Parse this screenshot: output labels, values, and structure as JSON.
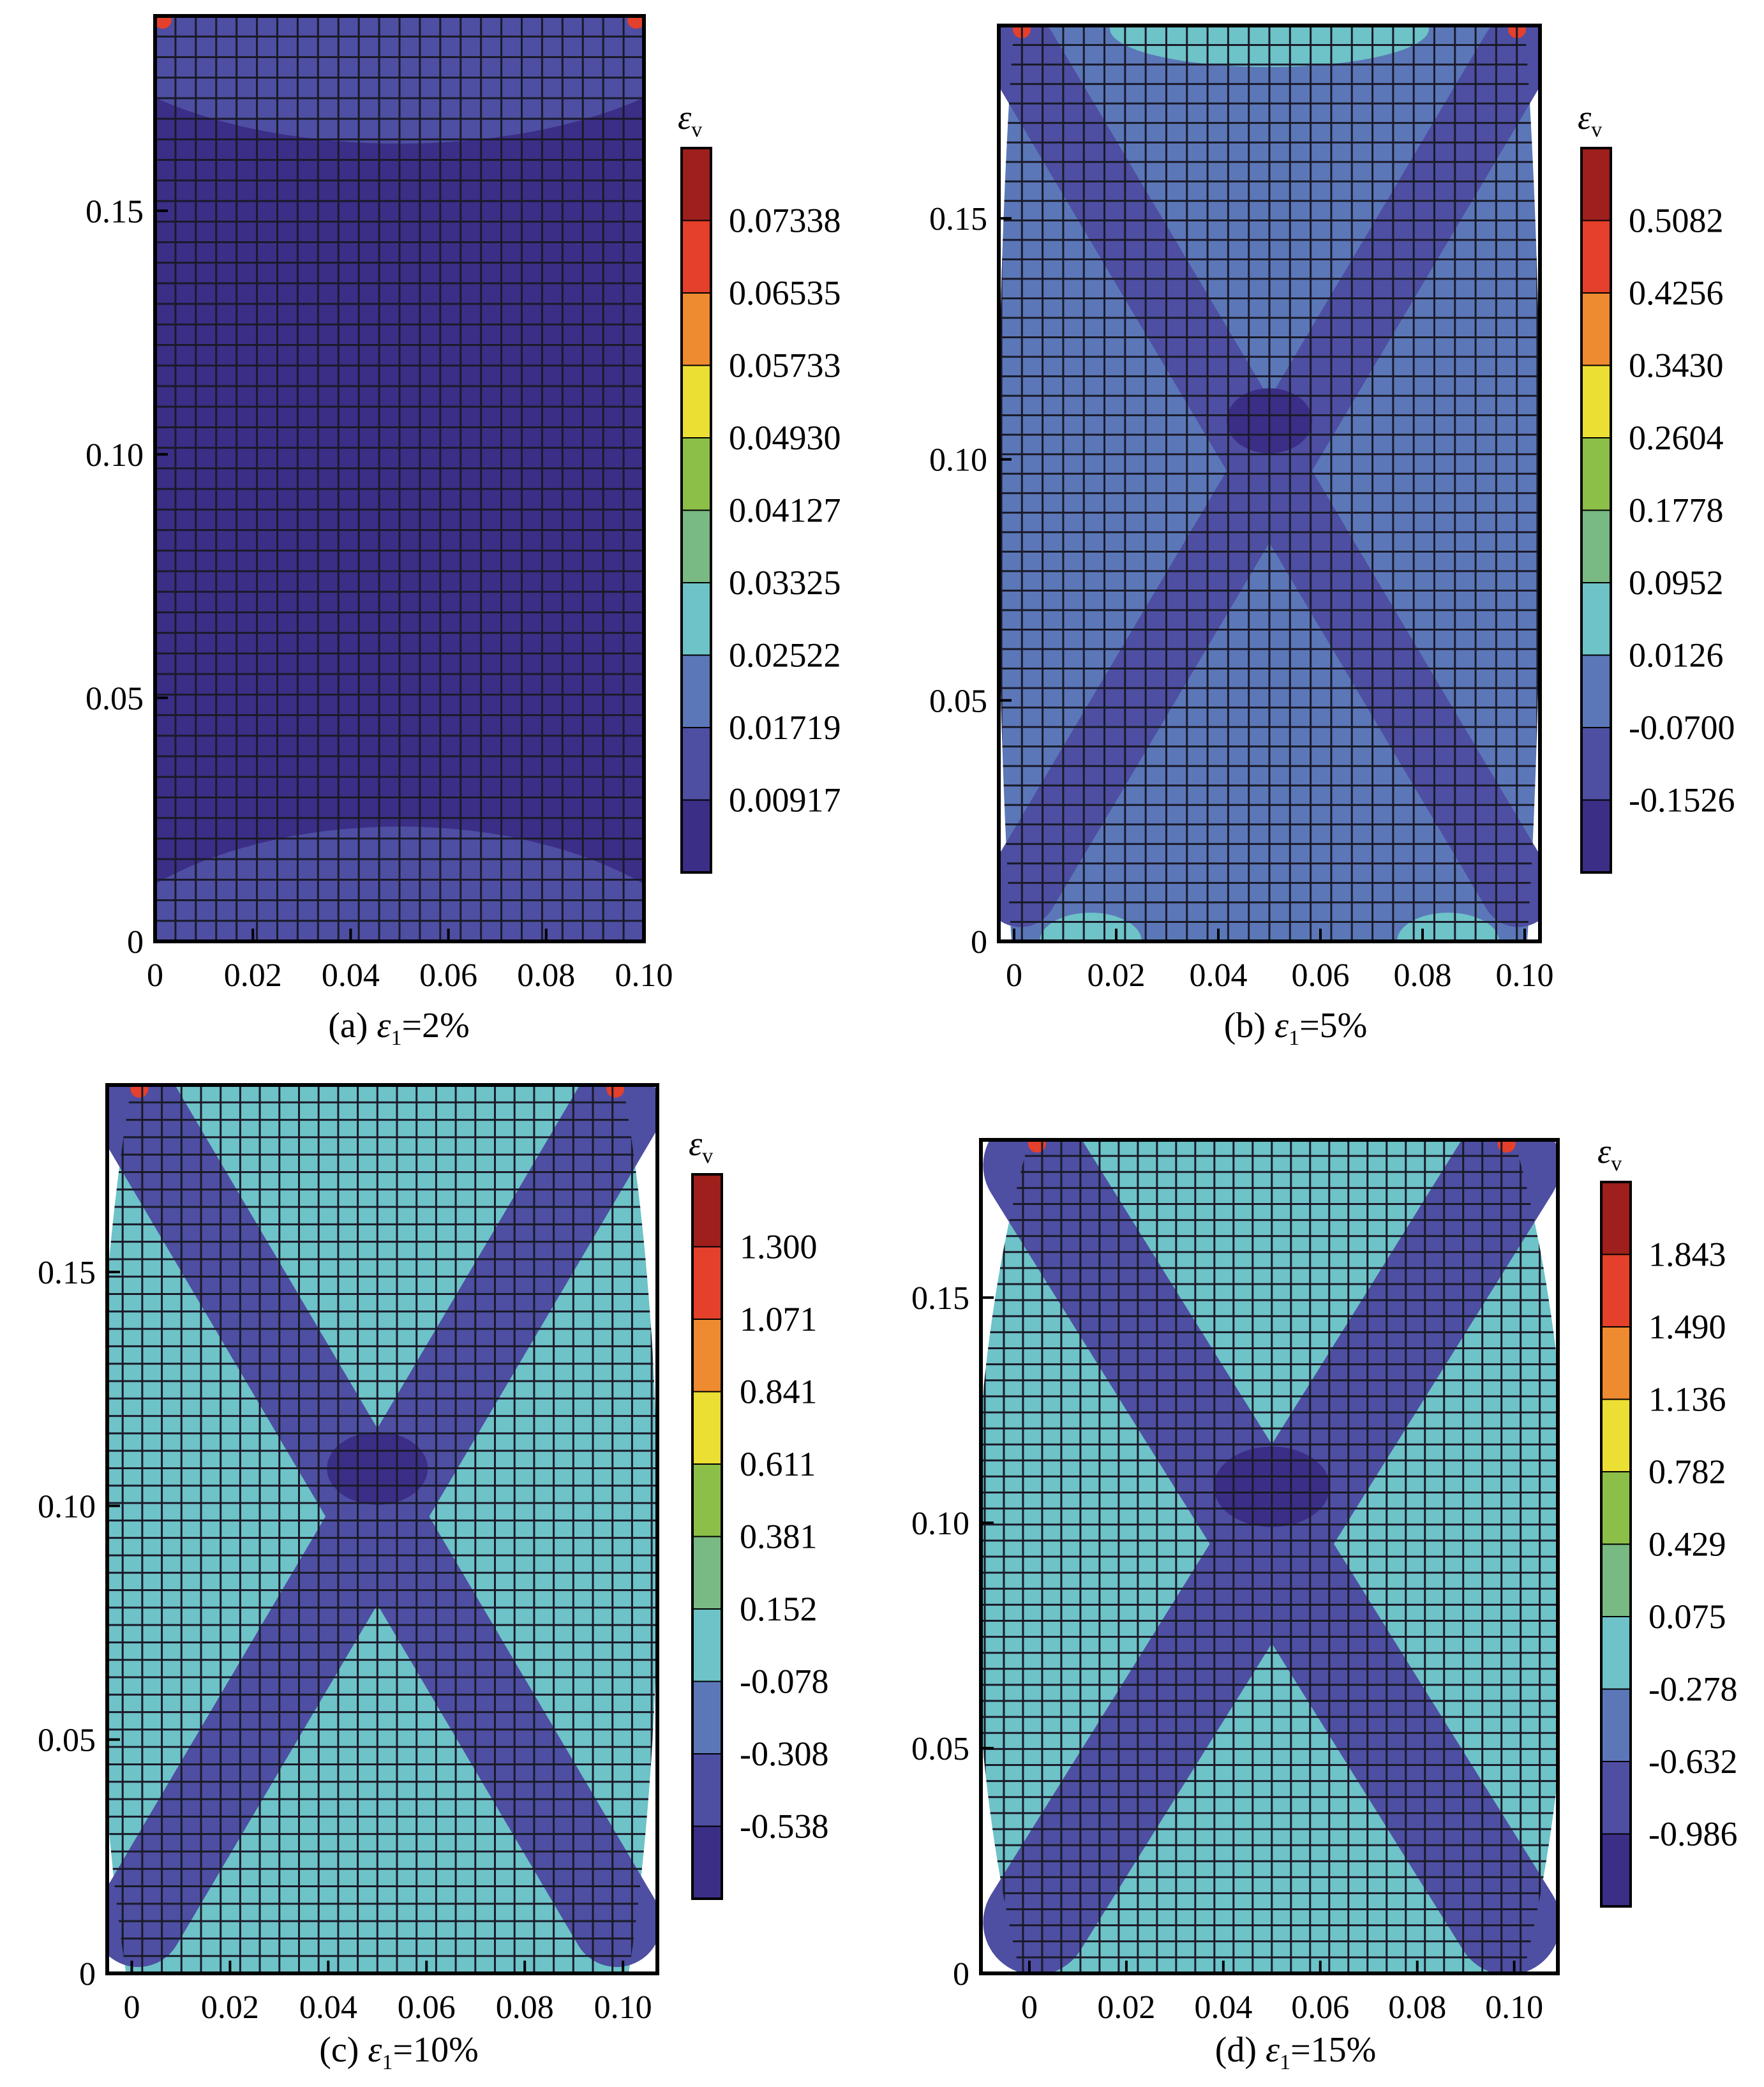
{
  "chart_data": [
    {
      "type": "heatmap",
      "panel_label": "(a)",
      "caption_var": "ε",
      "caption_sub": "1",
      "caption_value": "=2%",
      "colorbar_title": "ε",
      "colorbar_title_sub": "v",
      "colorbar_labels": [
        "0.07338",
        "0.06535",
        "0.05733",
        "0.04930",
        "0.04127",
        "0.03325",
        "0.02522",
        "0.01719",
        "0.00917"
      ],
      "x_ticks": [
        "0",
        "0.02",
        "0.04",
        "0.06",
        "0.08",
        "0.10"
      ],
      "y_ticks": [
        "0",
        "0.05",
        "0.10",
        "0.15"
      ],
      "xlim": [
        0,
        0.1
      ],
      "ylim": [
        0,
        0.19
      ],
      "strain": 0.02,
      "background_level": 0.0051,
      "shear_band_level": null,
      "center_level": null
    },
    {
      "type": "heatmap",
      "panel_label": "(b)",
      "caption_var": "ε",
      "caption_sub": "1",
      "caption_value": "=5%",
      "colorbar_title": "ε",
      "colorbar_title_sub": "v",
      "colorbar_labels": [
        "0.5082",
        "0.4256",
        "0.3430",
        "0.2604",
        "0.1778",
        "0.0952",
        "0.0126",
        "-0.0700",
        "-0.1526"
      ],
      "x_ticks": [
        "0",
        "0.02",
        "0.04",
        "0.06",
        "0.08",
        "0.10"
      ],
      "y_ticks": [
        "0",
        "0.05",
        "0.10",
        "0.15"
      ],
      "xlim": [
        -0.003,
        0.103
      ],
      "ylim": [
        0,
        0.19
      ],
      "strain": 0.05,
      "background_level": -0.03,
      "shear_band_level": -0.11,
      "center_level": -0.18
    },
    {
      "type": "heatmap",
      "panel_label": "(c)",
      "caption_var": "ε",
      "caption_sub": "1",
      "caption_value": "=10%",
      "colorbar_title": "ε",
      "colorbar_title_sub": "v",
      "colorbar_labels": [
        "1.300",
        "1.071",
        "0.841",
        "0.611",
        "0.381",
        "0.152",
        "-0.078",
        "-0.308",
        "-0.538"
      ],
      "x_ticks": [
        "0",
        "0.02",
        "0.04",
        "0.06",
        "0.08",
        "0.10"
      ],
      "y_ticks": [
        "0",
        "0.05",
        "0.10",
        "0.15"
      ],
      "xlim": [
        -0.005,
        0.107
      ],
      "ylim": [
        0,
        0.19
      ],
      "strain": 0.1,
      "background_level": 0.04,
      "shear_band_level": -0.42,
      "center_level": -0.6
    },
    {
      "type": "heatmap",
      "panel_label": "(d)",
      "caption_var": "ε",
      "caption_sub": "1",
      "caption_value": "=15%",
      "colorbar_title": "ε",
      "colorbar_title_sub": "v",
      "colorbar_labels": [
        "1.843",
        "1.490",
        "1.136",
        "0.782",
        "0.429",
        "0.075",
        "-0.278",
        "-0.632",
        "-0.986"
      ],
      "x_ticks": [
        "0",
        "0.02",
        "0.04",
        "0.06",
        "0.08",
        "0.10"
      ],
      "y_ticks": [
        "0",
        "0.05",
        "0.10",
        "0.15"
      ],
      "xlim": [
        -0.01,
        0.109
      ],
      "ylim": [
        0,
        0.185
      ],
      "strain": 0.15,
      "background_level": -0.1,
      "shear_band_level": -0.8,
      "center_level": -1.15
    }
  ],
  "colorbar_colors": [
    "#9e1f1c",
    "#e4402b",
    "#ee8a2f",
    "#ecdf33",
    "#8cbf48",
    "#79b983",
    "#6dc3c7",
    "#5b77b8",
    "#4e4ea2",
    "#3b2e86"
  ]
}
